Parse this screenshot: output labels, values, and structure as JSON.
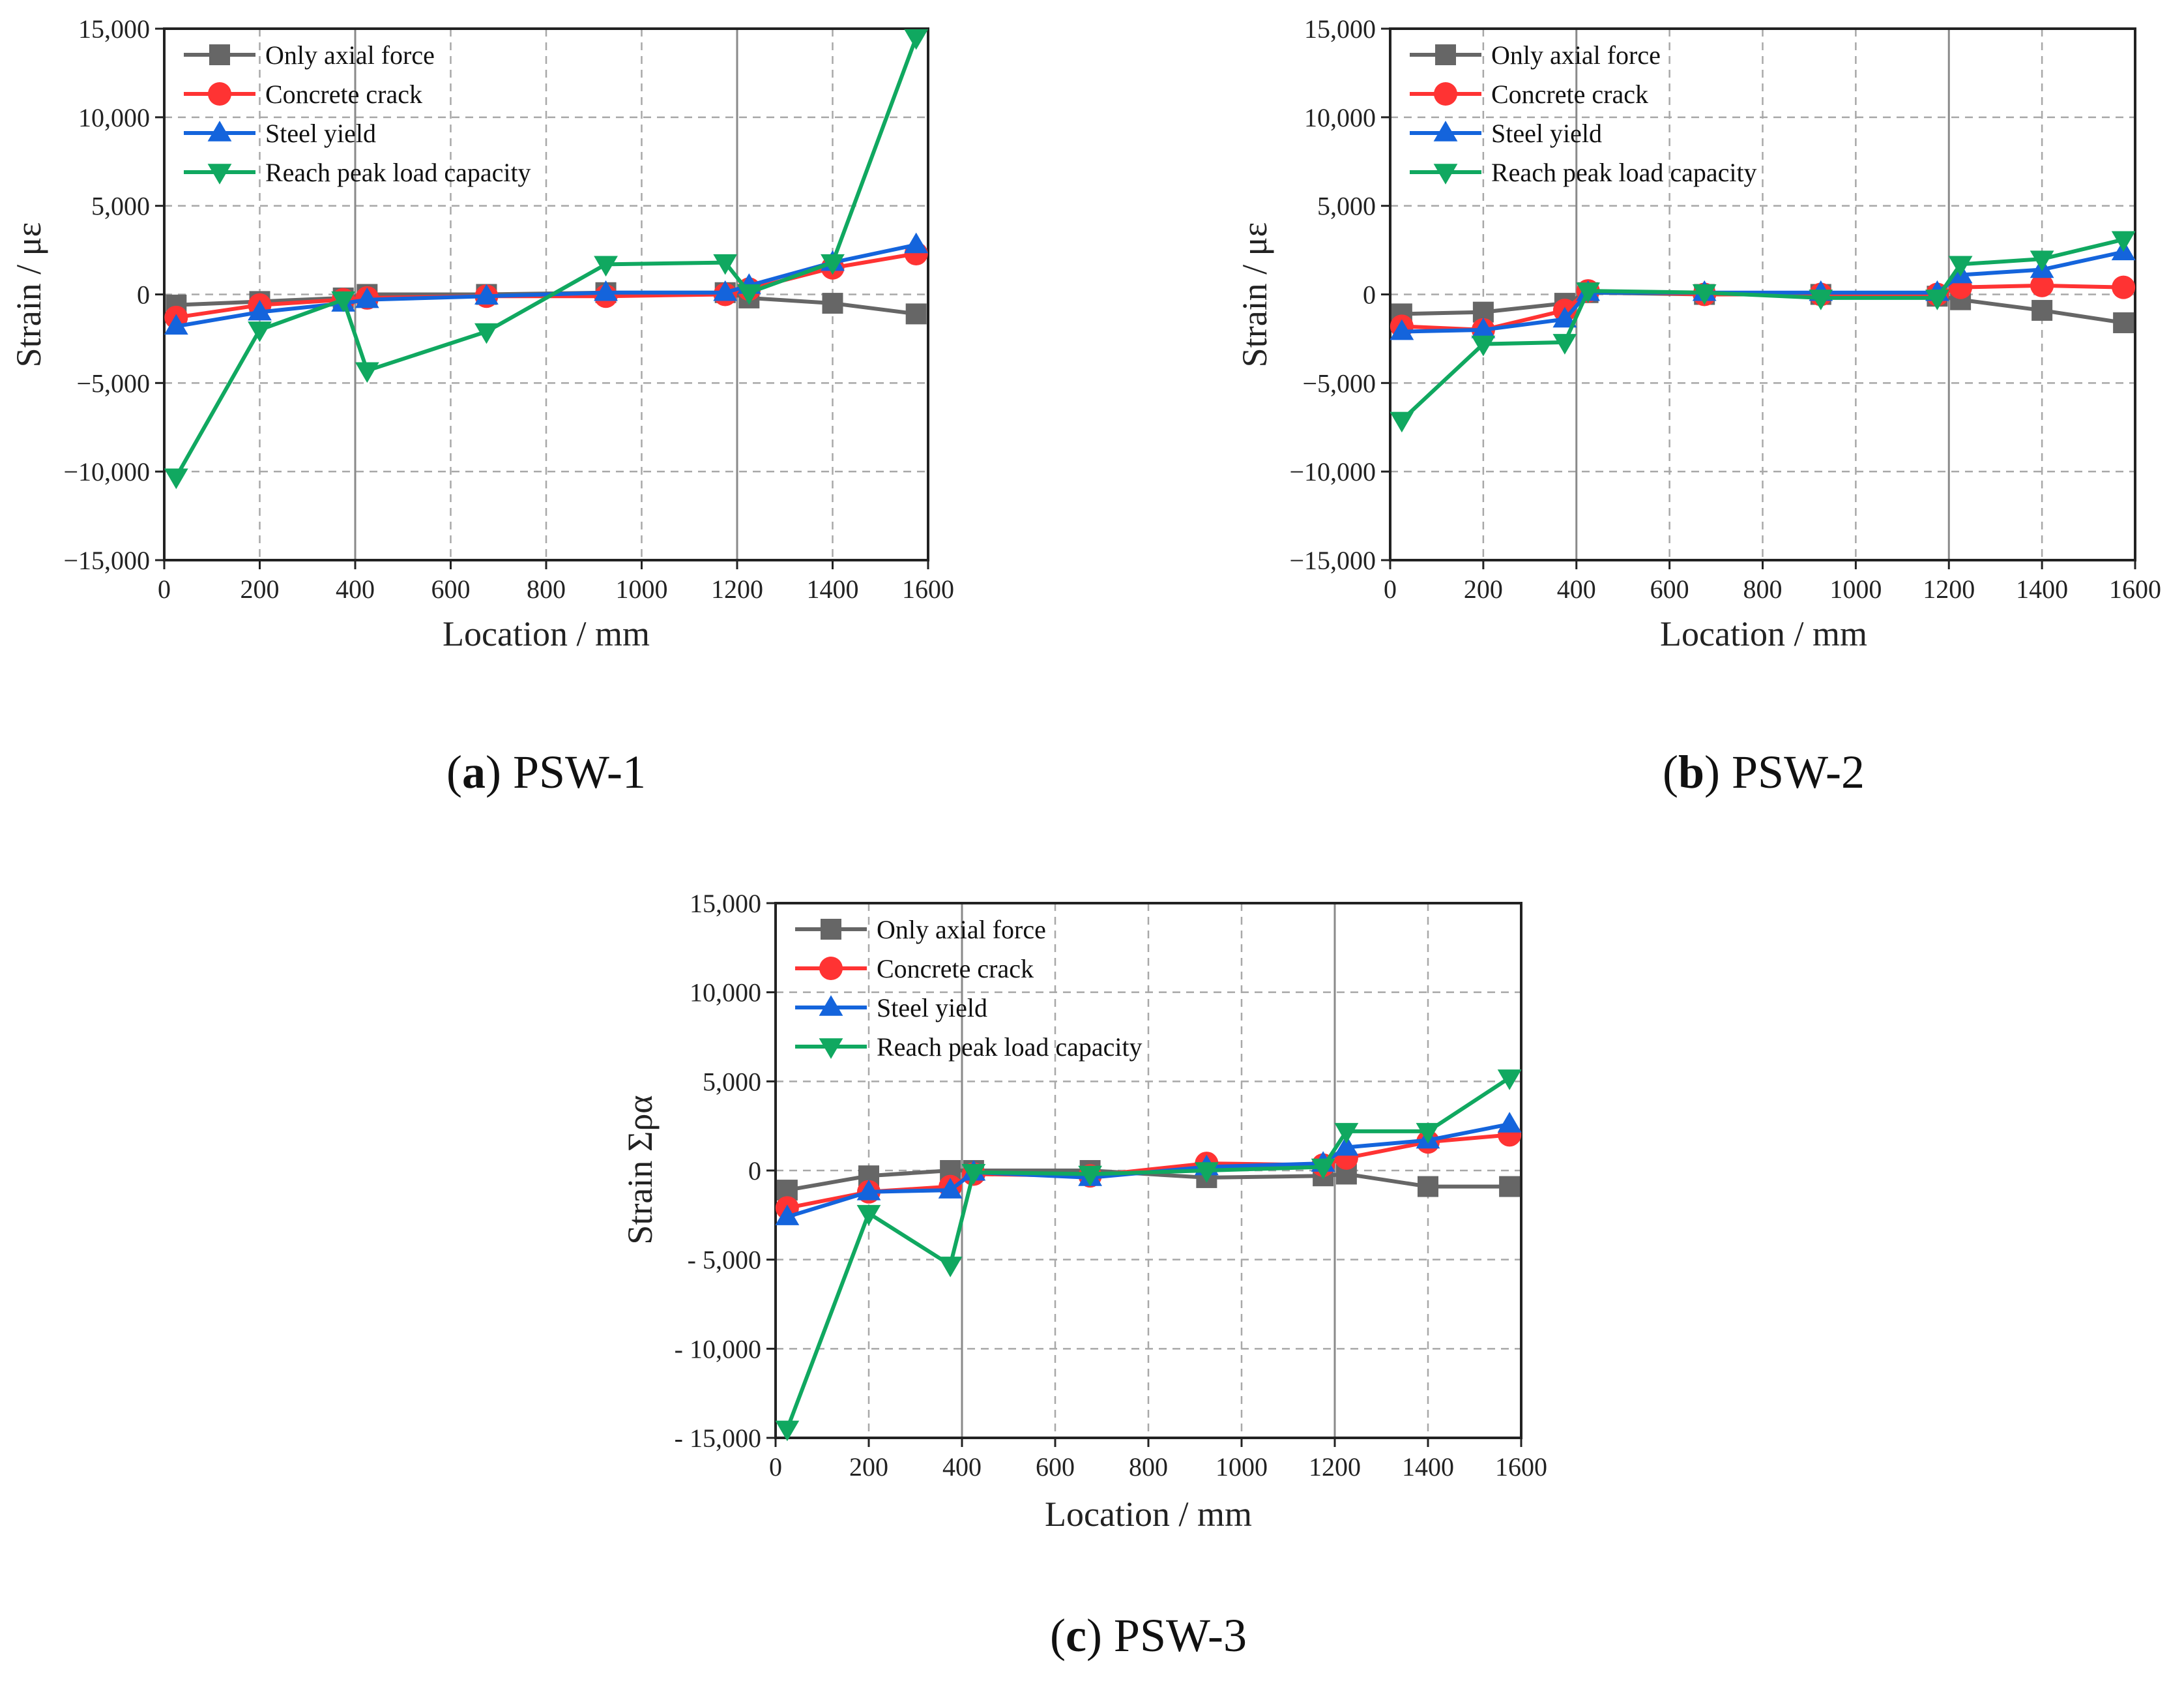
{
  "series_styles": [
    {
      "color": "#666666",
      "marker": "square"
    },
    {
      "color": "#ff3333",
      "marker": "circle"
    },
    {
      "color": "#1464dc",
      "marker": "triangle-up"
    },
    {
      "color": "#10a860",
      "marker": "triangle-down"
    }
  ],
  "chart_data": [
    {
      "type": "line",
      "caption": {
        "letter": "a",
        "text": ") PSW-1",
        "open": "("
      },
      "title": "",
      "xlabel": "Location / mm",
      "ylabel": "Strain / με",
      "xlim": [
        0,
        1600
      ],
      "ylim": [
        -15000,
        15000
      ],
      "xticks": [
        0,
        200,
        400,
        600,
        800,
        1000,
        1200,
        1400,
        1600
      ],
      "xtick_labels": [
        "0",
        "200",
        "400",
        "600",
        "800",
        "1000",
        "1200",
        "1400",
        "1600"
      ],
      "yticks": [
        15000,
        10000,
        5000,
        0,
        -5000,
        -10000,
        -15000
      ],
      "ytick_labels": [
        "15,000",
        "10,000",
        "5,000",
        "0",
        "−5,000",
        "−10,000",
        "−15,000"
      ],
      "reference_lines_x": [
        400,
        1200
      ],
      "legend_position": "top-left",
      "series": [
        {
          "name": "Only axial force",
          "x": [
            25,
            200,
            375,
            425,
            675,
            925,
            1175,
            1225,
            1400,
            1575
          ],
          "y": [
            -600,
            -400,
            -200,
            0,
            0,
            100,
            100,
            -200,
            -500,
            -1100
          ]
        },
        {
          "name": "Concrete crack",
          "x": [
            25,
            200,
            375,
            425,
            675,
            925,
            1175,
            1225,
            1400,
            1575
          ],
          "y": [
            -1300,
            -600,
            -300,
            -200,
            -100,
            -100,
            0,
            300,
            1500,
            2300
          ]
        },
        {
          "name": "Steel yield",
          "x": [
            25,
            200,
            375,
            425,
            675,
            925,
            1175,
            1225,
            1400,
            1575
          ],
          "y": [
            -1800,
            -1000,
            -500,
            -300,
            -100,
            100,
            100,
            500,
            1800,
            2800
          ]
        },
        {
          "name": "Reach peak load capacity",
          "x": [
            25,
            200,
            375,
            425,
            675,
            925,
            1175,
            1225,
            1400,
            1575
          ],
          "y": [
            -10300,
            -2000,
            -300,
            -4300,
            -2100,
            1700,
            1800,
            100,
            1800,
            14500
          ]
        }
      ]
    },
    {
      "type": "line",
      "caption": {
        "letter": "b",
        "text": ") PSW-2",
        "open": "("
      },
      "title": "",
      "xlabel": "Location / mm",
      "ylabel": "Strain / με",
      "xlim": [
        0,
        1600
      ],
      "ylim": [
        -15000,
        15000
      ],
      "xticks": [
        0,
        200,
        400,
        600,
        800,
        1000,
        1200,
        1400,
        1600
      ],
      "xtick_labels": [
        "0",
        "200",
        "400",
        "600",
        "800",
        "1000",
        "1200",
        "1400",
        "1600"
      ],
      "yticks": [
        15000,
        10000,
        5000,
        0,
        -5000,
        -10000,
        -15000
      ],
      "ytick_labels": [
        "15,000",
        "10,000",
        "5,000",
        "0",
        "−5,000",
        "−10,000",
        "−15,000"
      ],
      "reference_lines_x": [
        400,
        1200
      ],
      "legend_position": "top-left",
      "series": [
        {
          "name": "Only axial force",
          "x": [
            25,
            200,
            375,
            425,
            675,
            925,
            1175,
            1225,
            1400,
            1575
          ],
          "y": [
            -1100,
            -1000,
            -500,
            100,
            0,
            0,
            -100,
            -300,
            -900,
            -1600
          ]
        },
        {
          "name": "Concrete crack",
          "x": [
            25,
            200,
            375,
            425,
            675,
            925,
            1175,
            1225,
            1400,
            1575
          ],
          "y": [
            -1800,
            -2000,
            -900,
            200,
            0,
            0,
            0,
            400,
            500,
            400
          ]
        },
        {
          "name": "Steel yield",
          "x": [
            25,
            200,
            375,
            425,
            675,
            925,
            1175,
            1225,
            1400,
            1575
          ],
          "y": [
            -2100,
            -2000,
            -1400,
            100,
            100,
            100,
            100,
            1100,
            1400,
            2400
          ]
        },
        {
          "name": "Reach peak load capacity",
          "x": [
            25,
            200,
            375,
            425,
            675,
            925,
            1175,
            1225,
            1400,
            1575
          ],
          "y": [
            -7100,
            -2800,
            -2700,
            200,
            100,
            -200,
            -200,
            1700,
            2000,
            3100
          ]
        }
      ]
    },
    {
      "type": "line",
      "caption": {
        "letter": "c",
        "text": ") PSW-3",
        "open": "("
      },
      "title": "",
      "xlabel": "Location / mm",
      "ylabel": "Strain Σρα",
      "xlim": [
        0,
        1600
      ],
      "ylim": [
        -15000,
        15000
      ],
      "xticks": [
        0,
        200,
        400,
        600,
        800,
        1000,
        1200,
        1400,
        1600
      ],
      "xtick_labels": [
        "0",
        "200",
        "400",
        "600",
        "800",
        "1000",
        "1200",
        "1400",
        "1600"
      ],
      "yticks": [
        15000,
        10000,
        5000,
        0,
        -5000,
        -10000,
        -15000
      ],
      "ytick_labels": [
        "15,000",
        "10,000",
        "5,000",
        "0",
        "- 5,000",
        "- 10,000",
        "- 15,000"
      ],
      "reference_lines_x": [
        400,
        1200
      ],
      "legend_position": "top-left",
      "series": [
        {
          "name": "Only axial force",
          "x": [
            25,
            200,
            375,
            425,
            675,
            925,
            1175,
            1225,
            1400,
            1575
          ],
          "y": [
            -1100,
            -300,
            0,
            0,
            0,
            -400,
            -300,
            -200,
            -900,
            -900
          ]
        },
        {
          "name": "Concrete crack",
          "x": [
            25,
            200,
            375,
            425,
            675,
            925,
            1175,
            1225,
            1400,
            1575
          ],
          "y": [
            -2100,
            -1200,
            -900,
            -200,
            -300,
            400,
            300,
            700,
            1600,
            2000
          ]
        },
        {
          "name": "Steel yield",
          "x": [
            25,
            200,
            375,
            425,
            675,
            925,
            1175,
            1225,
            1400,
            1575
          ],
          "y": [
            -2600,
            -1200,
            -1100,
            -100,
            -400,
            200,
            400,
            1300,
            1700,
            2600
          ]
        },
        {
          "name": "Reach peak load capacity",
          "x": [
            25,
            200,
            375,
            425,
            675,
            925,
            1175,
            1225,
            1400,
            1575
          ],
          "y": [
            -14500,
            -2400,
            -5300,
            -100,
            -200,
            0,
            200,
            2200,
            2200,
            5200
          ]
        }
      ]
    }
  ]
}
